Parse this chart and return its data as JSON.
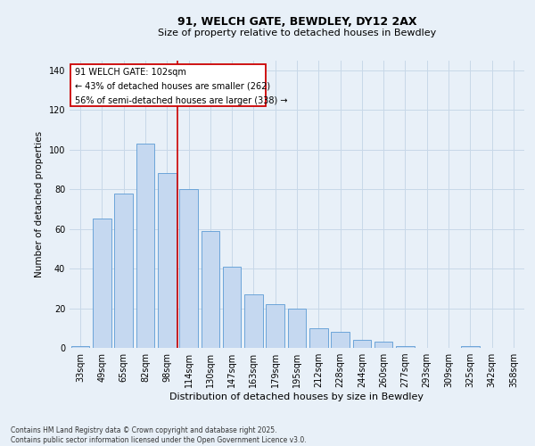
{
  "title1": "91, WELCH GATE, BEWDLEY, DY12 2AX",
  "title2": "Size of property relative to detached houses in Bewdley",
  "xlabel": "Distribution of detached houses by size in Bewdley",
  "ylabel": "Number of detached properties",
  "categories": [
    "33sqm",
    "49sqm",
    "65sqm",
    "82sqm",
    "98sqm",
    "114sqm",
    "130sqm",
    "147sqm",
    "163sqm",
    "179sqm",
    "195sqm",
    "212sqm",
    "228sqm",
    "244sqm",
    "260sqm",
    "277sqm",
    "293sqm",
    "309sqm",
    "325sqm",
    "342sqm",
    "358sqm"
  ],
  "values": [
    1,
    65,
    78,
    103,
    88,
    80,
    59,
    41,
    27,
    22,
    20,
    10,
    8,
    4,
    3,
    1,
    0,
    0,
    1,
    0,
    0
  ],
  "bar_color": "#c5d8f0",
  "bar_edge_color": "#5b9bd5",
  "property_label": "91 WELCH GATE: 102sqm",
  "line1": "← 43% of detached houses are smaller (262)",
  "line2": "56% of semi-detached houses are larger (338) →",
  "annotation_box_color": "#ffffff",
  "annotation_box_edge": "#cc0000",
  "vline_color": "#cc0000",
  "grid_color": "#c8d8e8",
  "bg_color": "#e8f0f8",
  "ylim": [
    0,
    145
  ],
  "yticks": [
    0,
    20,
    40,
    60,
    80,
    100,
    120,
    140
  ],
  "footer": "Contains HM Land Registry data © Crown copyright and database right 2025.\nContains public sector information licensed under the Open Government Licence v3.0."
}
